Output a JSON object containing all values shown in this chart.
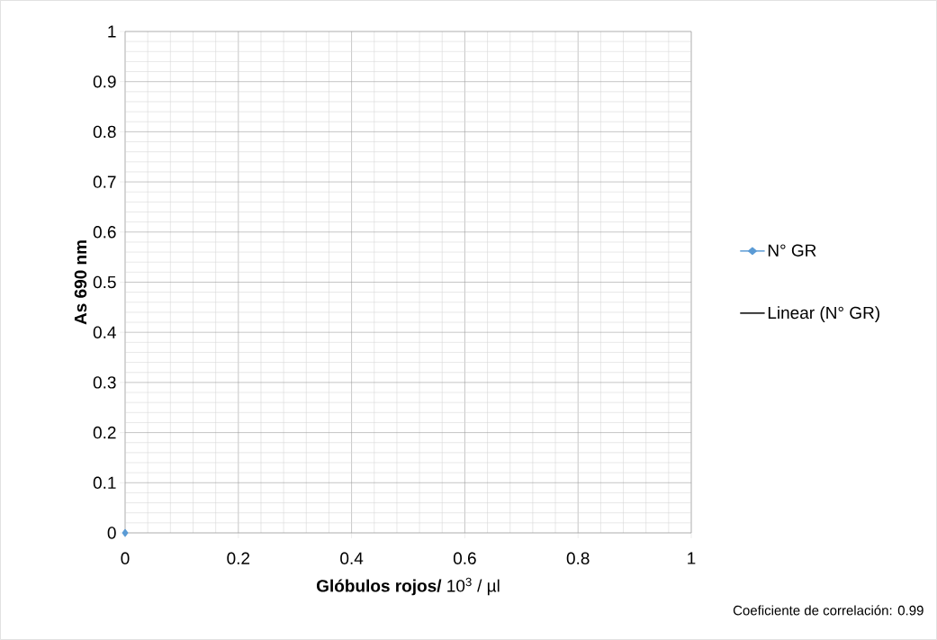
{
  "chart_data": {
    "type": "line",
    "xlabel": "**Glóbulos rojos/** 10$^{3}$ / µl",
    "ylabel": "As 690 nm",
    "xlim": [
      0,
      1
    ],
    "xticks": [
      0,
      0.2,
      0.4,
      0.6,
      0.8,
      1
    ],
    "ylim": [
      0,
      1
    ],
    "yticks": [
      0,
      0.1,
      0.2,
      0.3,
      0.4,
      0.5,
      0.6,
      0.7,
      0.8,
      0.9,
      1
    ],
    "grid": true,
    "legend": "right",
    "series": [
      {
        "name": "N° GR",
        "color": "#5b9bd5",
        "marker": "diamond",
        "x": [
          0
        ],
        "values": [
          0
        ]
      },
      {
        "name": "Linear (N° GR)",
        "color": "#000000",
        "marker": "none"
      }
    ],
    "annotations": [
      "Coeficiente de correlación: 0.99"
    ]
  }
}
